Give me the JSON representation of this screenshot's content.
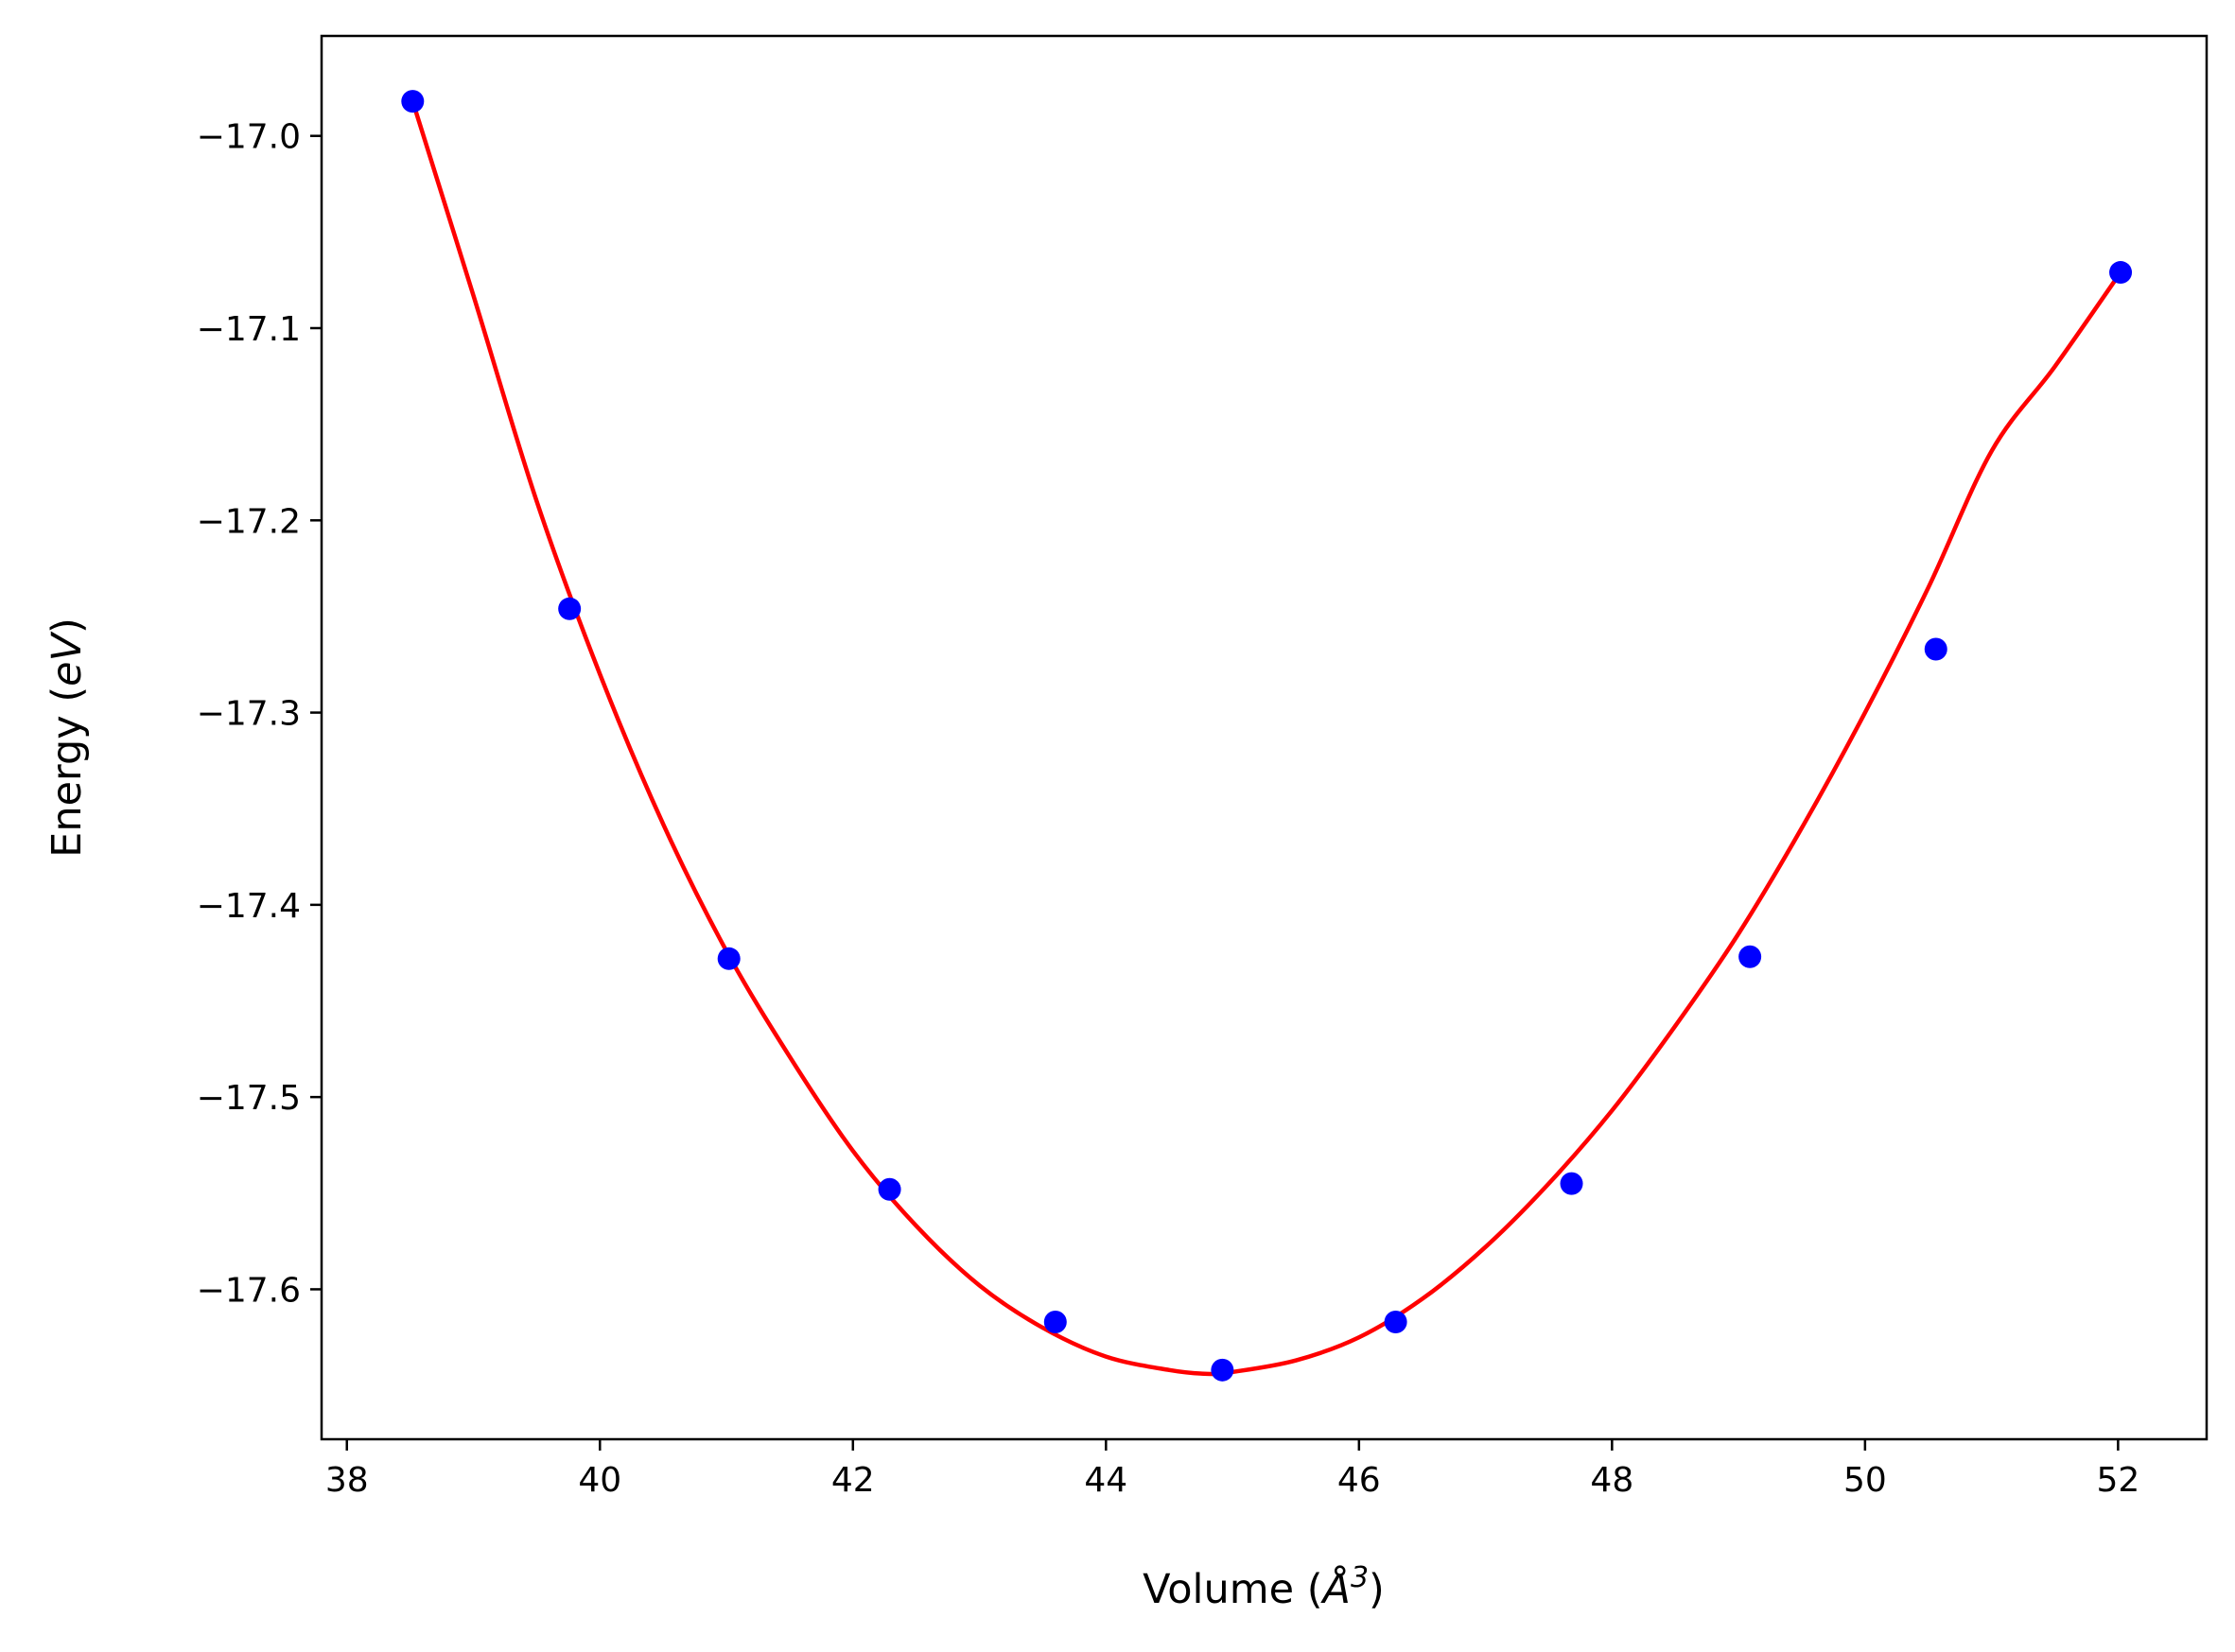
{
  "chart_data": {
    "type": "scatter",
    "title": "",
    "xlabel": {
      "text": "Volume (",
      "sym": "Å",
      "sup": "3",
      "close": ")"
    },
    "ylabel": {
      "text": "Energy (",
      "var": "eV",
      "close": ")"
    },
    "xlim": [
      37.8,
      52.7
    ],
    "ylim": [
      -17.678,
      -16.948
    ],
    "xticks": [
      38,
      40,
      42,
      44,
      46,
      48,
      50,
      52
    ],
    "yticks": [
      -17.0,
      -17.1,
      -17.2,
      -17.3,
      -17.4,
      -17.5,
      -17.6
    ],
    "ytick_labels": [
      "−17.0",
      "−17.1",
      "−17.2",
      "−17.3",
      "−17.4",
      "−17.5",
      "−17.6"
    ],
    "grid": false,
    "series": [
      {
        "kind": "points",
        "color": "#0000ff",
        "x": [
          38.52,
          39.76,
          41.02,
          42.29,
          43.6,
          44.92,
          46.29,
          47.68,
          49.09,
          50.56,
          52.02
        ],
        "y": [
          -16.982,
          -17.246,
          -17.428,
          -17.548,
          -17.617,
          -17.642,
          -17.617,
          -17.545,
          -17.427,
          -17.267,
          -17.071
        ]
      },
      {
        "kind": "fit-line",
        "color": "#ff0000",
        "x": [
          38.52,
          39.0,
          39.5,
          40.0,
          40.5,
          41.0,
          41.5,
          42.0,
          42.5,
          43.0,
          43.5,
          44.0,
          44.5,
          44.8,
          45.0,
          45.5,
          46.0,
          46.5,
          47.0,
          47.5,
          48.0,
          48.5,
          49.0,
          49.5,
          50.0,
          50.5,
          51.0,
          51.5,
          52.02
        ],
        "y": [
          -16.982,
          -17.083,
          -17.19,
          -17.28,
          -17.358,
          -17.424,
          -17.479,
          -17.528,
          -17.567,
          -17.598,
          -17.62,
          -17.635,
          -17.642,
          -17.644,
          -17.643,
          -17.637,
          -17.625,
          -17.605,
          -17.578,
          -17.545,
          -17.507,
          -17.463,
          -17.415,
          -17.36,
          -17.3,
          -17.235,
          -17.164,
          -17.12,
          -17.071
        ]
      }
    ]
  }
}
